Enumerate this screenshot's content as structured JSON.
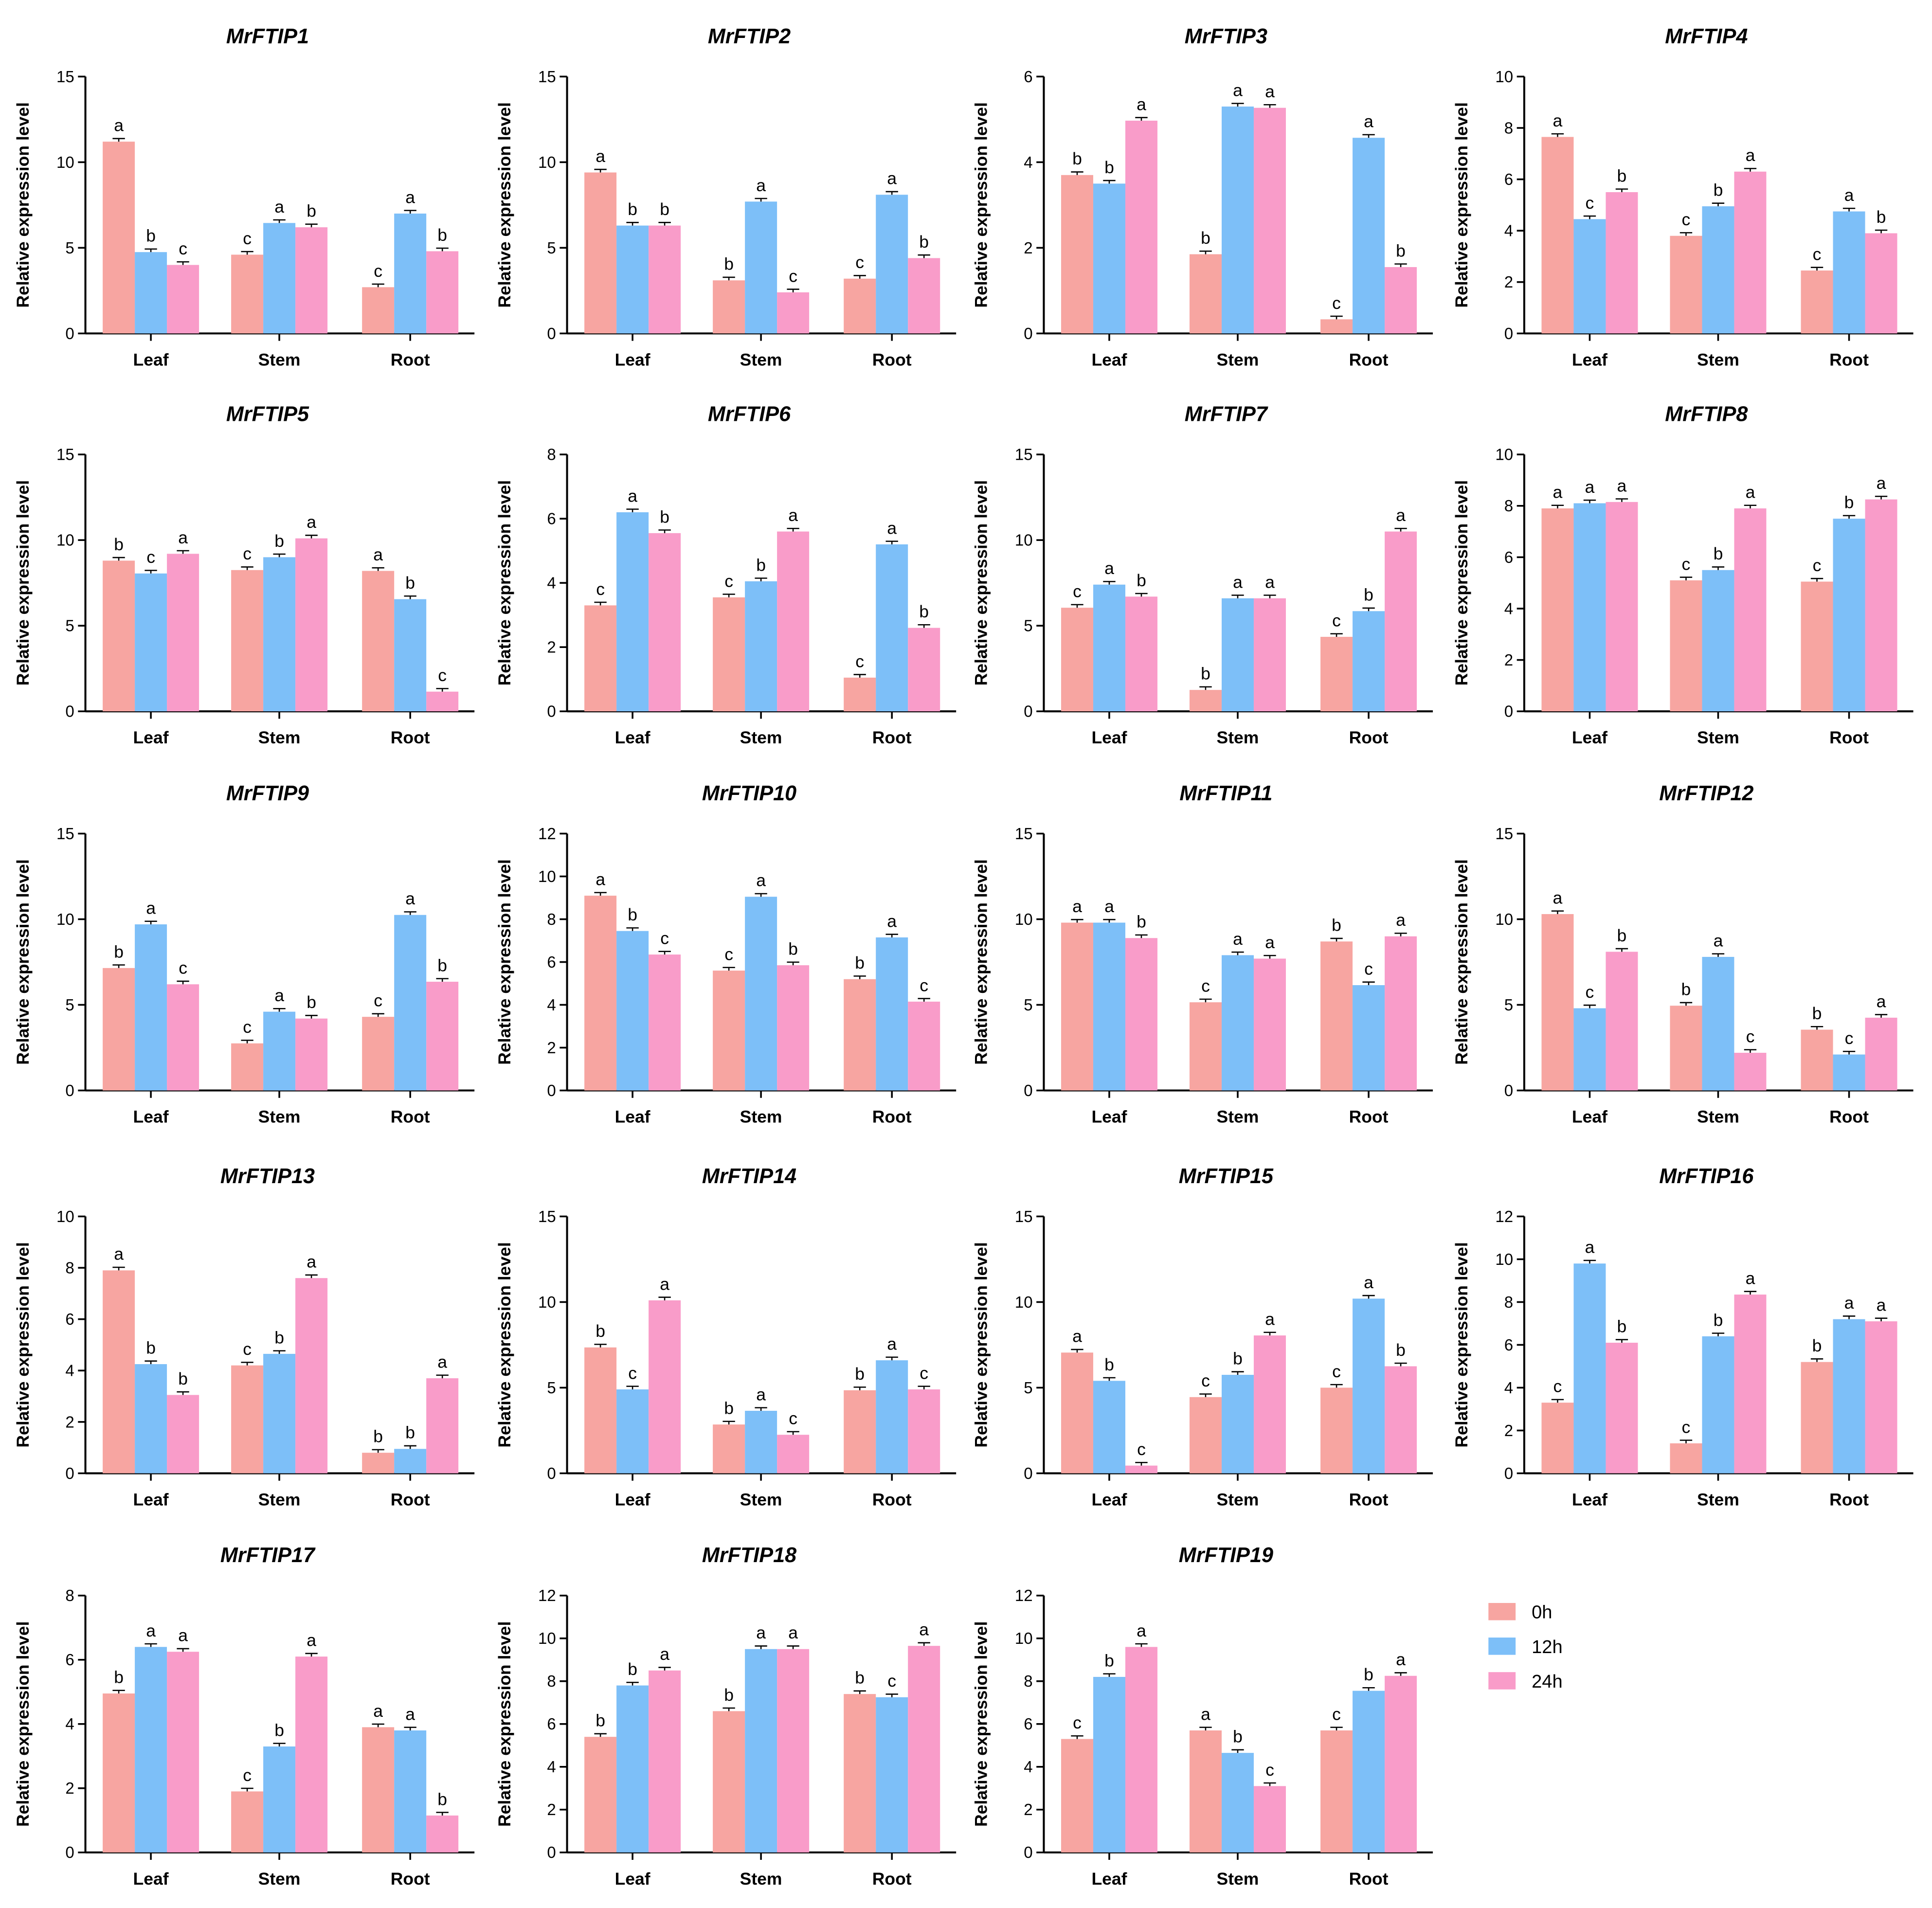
{
  "groups": [
    "0h",
    "12h",
    "24h"
  ],
  "colors": {
    "0h": "#F7A5A1",
    "12h": "#7DBFF8",
    "24h": "#F99CC9"
  },
  "chart_data": [
    {
      "type": "bar",
      "title": "MrFTIP1",
      "ylabel": "Relative expression level",
      "categories": [
        "Leaf",
        "Stem",
        "Root"
      ],
      "ylim": [
        0,
        15
      ],
      "yticks": [
        0,
        5,
        10,
        15
      ],
      "series": [
        {
          "name": "0h",
          "values": [
            11.2,
            4.6,
            2.7
          ],
          "letters": [
            "a",
            "c",
            "c"
          ]
        },
        {
          "name": "12h",
          "values": [
            4.75,
            6.45,
            7.0
          ],
          "letters": [
            "b",
            "a",
            "a"
          ]
        },
        {
          "name": "24h",
          "values": [
            4.0,
            6.2,
            4.8
          ],
          "letters": [
            "c",
            "b",
            "b"
          ]
        }
      ]
    },
    {
      "type": "bar",
      "title": "MrFTIP2",
      "ylabel": "Relative expression level",
      "categories": [
        "Leaf",
        "Stem",
        "Root"
      ],
      "ylim": [
        0,
        15
      ],
      "yticks": [
        0,
        5,
        10,
        15
      ],
      "series": [
        {
          "name": "0h",
          "values": [
            9.4,
            3.1,
            3.2
          ],
          "letters": [
            "a",
            "b",
            "c"
          ]
        },
        {
          "name": "12h",
          "values": [
            6.3,
            7.7,
            8.1
          ],
          "letters": [
            "b",
            "a",
            "a"
          ]
        },
        {
          "name": "24h",
          "values": [
            6.3,
            2.4,
            4.4
          ],
          "letters": [
            "b",
            "c",
            "b"
          ]
        }
      ]
    },
    {
      "type": "bar",
      "title": "MrFTIP3",
      "ylabel": "Relative expression level",
      "categories": [
        "Leaf",
        "Stem",
        "Root"
      ],
      "ylim": [
        0,
        6
      ],
      "yticks": [
        0,
        2,
        4,
        6
      ],
      "series": [
        {
          "name": "0h",
          "values": [
            3.7,
            1.85,
            0.33
          ],
          "letters": [
            "b",
            "b",
            "c"
          ]
        },
        {
          "name": "12h",
          "values": [
            3.5,
            5.3,
            4.57
          ],
          "letters": [
            "b",
            "a",
            "a"
          ]
        },
        {
          "name": "24h",
          "values": [
            4.97,
            5.27,
            1.55
          ],
          "letters": [
            "a",
            "a",
            "b"
          ]
        }
      ]
    },
    {
      "type": "bar",
      "title": "MrFTIP4",
      "ylabel": "Relative expression level",
      "categories": [
        "Leaf",
        "Stem",
        "Root"
      ],
      "ylim": [
        0,
        10
      ],
      "yticks": [
        0,
        2,
        4,
        6,
        8,
        10
      ],
      "series": [
        {
          "name": "0h",
          "values": [
            7.65,
            3.8,
            2.45
          ],
          "letters": [
            "a",
            "c",
            "c"
          ]
        },
        {
          "name": "12h",
          "values": [
            4.45,
            4.95,
            4.75
          ],
          "letters": [
            "c",
            "b",
            "a"
          ]
        },
        {
          "name": "24h",
          "values": [
            5.5,
            6.3,
            3.9
          ],
          "letters": [
            "b",
            "a",
            "b"
          ]
        }
      ]
    },
    {
      "type": "bar",
      "title": "MrFTIP5",
      "ylabel": "Relative expression level",
      "categories": [
        "Leaf",
        "Stem",
        "Root"
      ],
      "ylim": [
        0,
        15
      ],
      "yticks": [
        0,
        5,
        10,
        15
      ],
      "series": [
        {
          "name": "0h",
          "values": [
            8.8,
            8.25,
            8.2
          ],
          "letters": [
            "b",
            "c",
            "a"
          ]
        },
        {
          "name": "12h",
          "values": [
            8.05,
            9.0,
            6.55
          ],
          "letters": [
            "c",
            "b",
            "b"
          ]
        },
        {
          "name": "24h",
          "values": [
            9.2,
            10.1,
            1.15
          ],
          "letters": [
            "a",
            "a",
            "c"
          ]
        }
      ]
    },
    {
      "type": "bar",
      "title": "MrFTIP6",
      "ylabel": "Relative expression level",
      "categories": [
        "Leaf",
        "Stem",
        "Root"
      ],
      "ylim": [
        0,
        8
      ],
      "yticks": [
        0,
        2,
        4,
        6,
        8
      ],
      "series": [
        {
          "name": "0h",
          "values": [
            3.3,
            3.55,
            1.05
          ],
          "letters": [
            "c",
            "c",
            "c"
          ]
        },
        {
          "name": "12h",
          "values": [
            6.2,
            4.05,
            5.2
          ],
          "letters": [
            "a",
            "b",
            "a"
          ]
        },
        {
          "name": "24h",
          "values": [
            5.55,
            5.6,
            2.6
          ],
          "letters": [
            "b",
            "a",
            "b"
          ]
        }
      ]
    },
    {
      "type": "bar",
      "title": "MrFTIP7",
      "ylabel": "Relative expression level",
      "categories": [
        "Leaf",
        "Stem",
        "Root"
      ],
      "ylim": [
        0,
        15
      ],
      "yticks": [
        0,
        5,
        10,
        15
      ],
      "series": [
        {
          "name": "0h",
          "values": [
            6.05,
            1.25,
            4.35
          ],
          "letters": [
            "c",
            "b",
            "c"
          ]
        },
        {
          "name": "12h",
          "values": [
            7.4,
            6.6,
            5.85
          ],
          "letters": [
            "a",
            "a",
            "b"
          ]
        },
        {
          "name": "24h",
          "values": [
            6.7,
            6.6,
            10.5
          ],
          "letters": [
            "b",
            "a",
            "a"
          ]
        }
      ]
    },
    {
      "type": "bar",
      "title": "MrFTIP8",
      "ylabel": "Relative expression level",
      "categories": [
        "Leaf",
        "Stem",
        "Root"
      ],
      "ylim": [
        0,
        10
      ],
      "yticks": [
        0,
        2,
        4,
        6,
        8,
        10
      ],
      "series": [
        {
          "name": "0h",
          "values": [
            7.9,
            5.1,
            5.05
          ],
          "letters": [
            "a",
            "c",
            "c"
          ]
        },
        {
          "name": "12h",
          "values": [
            8.1,
            5.5,
            7.5
          ],
          "letters": [
            "a",
            "b",
            "b"
          ]
        },
        {
          "name": "24h",
          "values": [
            8.15,
            7.9,
            8.25
          ],
          "letters": [
            "a",
            "a",
            "a"
          ]
        }
      ]
    },
    {
      "type": "bar",
      "title": "MrFTIP9",
      "ylabel": "Relative expression level",
      "categories": [
        "Leaf",
        "Stem",
        "Root"
      ],
      "ylim": [
        0,
        15
      ],
      "yticks": [
        0,
        5,
        10,
        15
      ],
      "series": [
        {
          "name": "0h",
          "values": [
            7.15,
            2.75,
            4.3
          ],
          "letters": [
            "b",
            "c",
            "c"
          ]
        },
        {
          "name": "12h",
          "values": [
            9.7,
            4.6,
            10.25
          ],
          "letters": [
            "a",
            "a",
            "a"
          ]
        },
        {
          "name": "24h",
          "values": [
            6.2,
            4.2,
            6.35
          ],
          "letters": [
            "c",
            "b",
            "b"
          ]
        }
      ]
    },
    {
      "type": "bar",
      "title": "MrFTIP10",
      "ylabel": "Relative expression level",
      "categories": [
        "Leaf",
        "Stem",
        "Root"
      ],
      "ylim": [
        0,
        12
      ],
      "yticks": [
        0,
        2,
        4,
        6,
        8,
        10,
        12
      ],
      "series": [
        {
          "name": "0h",
          "values": [
            9.1,
            5.6,
            5.2
          ],
          "letters": [
            "a",
            "c",
            "b"
          ]
        },
        {
          "name": "12h",
          "values": [
            7.45,
            9.05,
            7.15
          ],
          "letters": [
            "b",
            "a",
            "a"
          ]
        },
        {
          "name": "24h",
          "values": [
            6.35,
            5.85,
            4.15
          ],
          "letters": [
            "c",
            "b",
            "c"
          ]
        }
      ]
    },
    {
      "type": "bar",
      "title": "MrFTIP11",
      "ylabel": "Relative expression level",
      "categories": [
        "Leaf",
        "Stem",
        "Root"
      ],
      "ylim": [
        0,
        15
      ],
      "yticks": [
        0,
        5,
        10,
        15
      ],
      "series": [
        {
          "name": "0h",
          "values": [
            9.8,
            5.15,
            8.7
          ],
          "letters": [
            "a",
            "c",
            "b"
          ]
        },
        {
          "name": "12h",
          "values": [
            9.8,
            7.9,
            6.15
          ],
          "letters": [
            "a",
            "a",
            "c"
          ]
        },
        {
          "name": "24h",
          "values": [
            8.9,
            7.7,
            9.0
          ],
          "letters": [
            "b",
            "a",
            "a"
          ]
        }
      ]
    },
    {
      "type": "bar",
      "title": "MrFTIP12",
      "ylabel": "Relative expression level",
      "categories": [
        "Leaf",
        "Stem",
        "Root"
      ],
      "ylim": [
        0,
        15
      ],
      "yticks": [
        0,
        5,
        10,
        15
      ],
      "series": [
        {
          "name": "0h",
          "values": [
            10.3,
            4.95,
            3.55
          ],
          "letters": [
            "a",
            "b",
            "b"
          ]
        },
        {
          "name": "12h",
          "values": [
            4.8,
            7.8,
            2.1
          ],
          "letters": [
            "c",
            "a",
            "c"
          ]
        },
        {
          "name": "24h",
          "values": [
            8.1,
            2.2,
            4.25
          ],
          "letters": [
            "b",
            "c",
            "a"
          ]
        }
      ]
    },
    {
      "type": "bar",
      "title": "MrFTIP13",
      "ylabel": "Relative expression level",
      "categories": [
        "Leaf",
        "Stem",
        "Root"
      ],
      "ylim": [
        0,
        10
      ],
      "yticks": [
        0,
        2,
        4,
        6,
        8,
        10
      ],
      "series": [
        {
          "name": "0h",
          "values": [
            7.9,
            4.2,
            0.8
          ],
          "letters": [
            "a",
            "c",
            "b"
          ]
        },
        {
          "name": "12h",
          "values": [
            4.25,
            4.65,
            0.95
          ],
          "letters": [
            "b",
            "b",
            "b"
          ]
        },
        {
          "name": "24h",
          "values": [
            3.05,
            7.6,
            3.7
          ],
          "letters": [
            "b",
            "a",
            "a"
          ]
        }
      ]
    },
    {
      "type": "bar",
      "title": "MrFTIP14",
      "ylabel": "Relative expression level",
      "categories": [
        "Leaf",
        "Stem",
        "Root"
      ],
      "ylim": [
        0,
        15
      ],
      "yticks": [
        0,
        5,
        10,
        15
      ],
      "series": [
        {
          "name": "0h",
          "values": [
            7.35,
            2.85,
            4.85
          ],
          "letters": [
            "b",
            "b",
            "b"
          ]
        },
        {
          "name": "12h",
          "values": [
            4.9,
            3.65,
            6.6
          ],
          "letters": [
            "c",
            "a",
            "a"
          ]
        },
        {
          "name": "24h",
          "values": [
            10.1,
            2.25,
            4.9
          ],
          "letters": [
            "a",
            "c",
            "c"
          ]
        }
      ]
    },
    {
      "type": "bar",
      "title": "MrFTIP15",
      "ylabel": "Relative expression level",
      "categories": [
        "Leaf",
        "Stem",
        "Root"
      ],
      "ylim": [
        0,
        15
      ],
      "yticks": [
        0,
        5,
        10,
        15
      ],
      "series": [
        {
          "name": "0h",
          "values": [
            7.05,
            4.45,
            5.0
          ],
          "letters": [
            "a",
            "c",
            "c"
          ]
        },
        {
          "name": "12h",
          "values": [
            5.4,
            5.75,
            10.2
          ],
          "letters": [
            "b",
            "b",
            "a"
          ]
        },
        {
          "name": "24h",
          "values": [
            0.45,
            8.05,
            6.25
          ],
          "letters": [
            "c",
            "a",
            "b"
          ]
        }
      ]
    },
    {
      "type": "bar",
      "title": "MrFTIP16",
      "ylabel": "Relative expression level",
      "categories": [
        "Leaf",
        "Stem",
        "Root"
      ],
      "ylim": [
        0,
        12
      ],
      "yticks": [
        0,
        2,
        4,
        6,
        8,
        10,
        12
      ],
      "series": [
        {
          "name": "0h",
          "values": [
            3.3,
            1.4,
            5.2
          ],
          "letters": [
            "c",
            "c",
            "b"
          ]
        },
        {
          "name": "12h",
          "values": [
            9.8,
            6.4,
            7.2
          ],
          "letters": [
            "a",
            "b",
            "a"
          ]
        },
        {
          "name": "24h",
          "values": [
            6.1,
            8.35,
            7.1
          ],
          "letters": [
            "b",
            "a",
            "a"
          ]
        }
      ]
    },
    {
      "type": "bar",
      "title": "MrFTIP17",
      "ylabel": "Relative expression level",
      "categories": [
        "Leaf",
        "Stem",
        "Root"
      ],
      "ylim": [
        0,
        8
      ],
      "yticks": [
        0,
        2,
        4,
        6,
        8
      ],
      "series": [
        {
          "name": "0h",
          "values": [
            4.95,
            1.9,
            3.9
          ],
          "letters": [
            "b",
            "c",
            "a"
          ]
        },
        {
          "name": "12h",
          "values": [
            6.4,
            3.3,
            3.8
          ],
          "letters": [
            "a",
            "b",
            "a"
          ]
        },
        {
          "name": "24h",
          "values": [
            6.25,
            6.1,
            1.15
          ],
          "letters": [
            "a",
            "a",
            "b"
          ]
        }
      ]
    },
    {
      "type": "bar",
      "title": "MrFTIP18",
      "ylabel": "Relative expression level",
      "categories": [
        "Leaf",
        "Stem",
        "Root"
      ],
      "ylim": [
        0,
        12
      ],
      "yticks": [
        0,
        2,
        4,
        6,
        8,
        10,
        12
      ],
      "series": [
        {
          "name": "0h",
          "values": [
            5.4,
            6.6,
            7.4
          ],
          "letters": [
            "b",
            "b",
            "b"
          ]
        },
        {
          "name": "12h",
          "values": [
            7.8,
            9.5,
            7.25
          ],
          "letters": [
            "b",
            "a",
            "c"
          ]
        },
        {
          "name": "24h",
          "values": [
            8.5,
            9.5,
            9.65
          ],
          "letters": [
            "a",
            "a",
            "a"
          ]
        }
      ]
    },
    {
      "type": "bar",
      "title": "MrFTIP19",
      "ylabel": "Relative expression level",
      "categories": [
        "Leaf",
        "Stem",
        "Root"
      ],
      "ylim": [
        0,
        12
      ],
      "yticks": [
        0,
        2,
        4,
        6,
        8,
        10,
        12
      ],
      "series": [
        {
          "name": "0h",
          "values": [
            5.3,
            5.7,
            5.7
          ],
          "letters": [
            "c",
            "a",
            "c"
          ]
        },
        {
          "name": "12h",
          "values": [
            8.2,
            4.65,
            7.55
          ],
          "letters": [
            "b",
            "b",
            "b"
          ]
        },
        {
          "name": "24h",
          "values": [
            9.6,
            3.1,
            8.25
          ],
          "letters": [
            "a",
            "c",
            "a"
          ]
        }
      ]
    }
  ]
}
